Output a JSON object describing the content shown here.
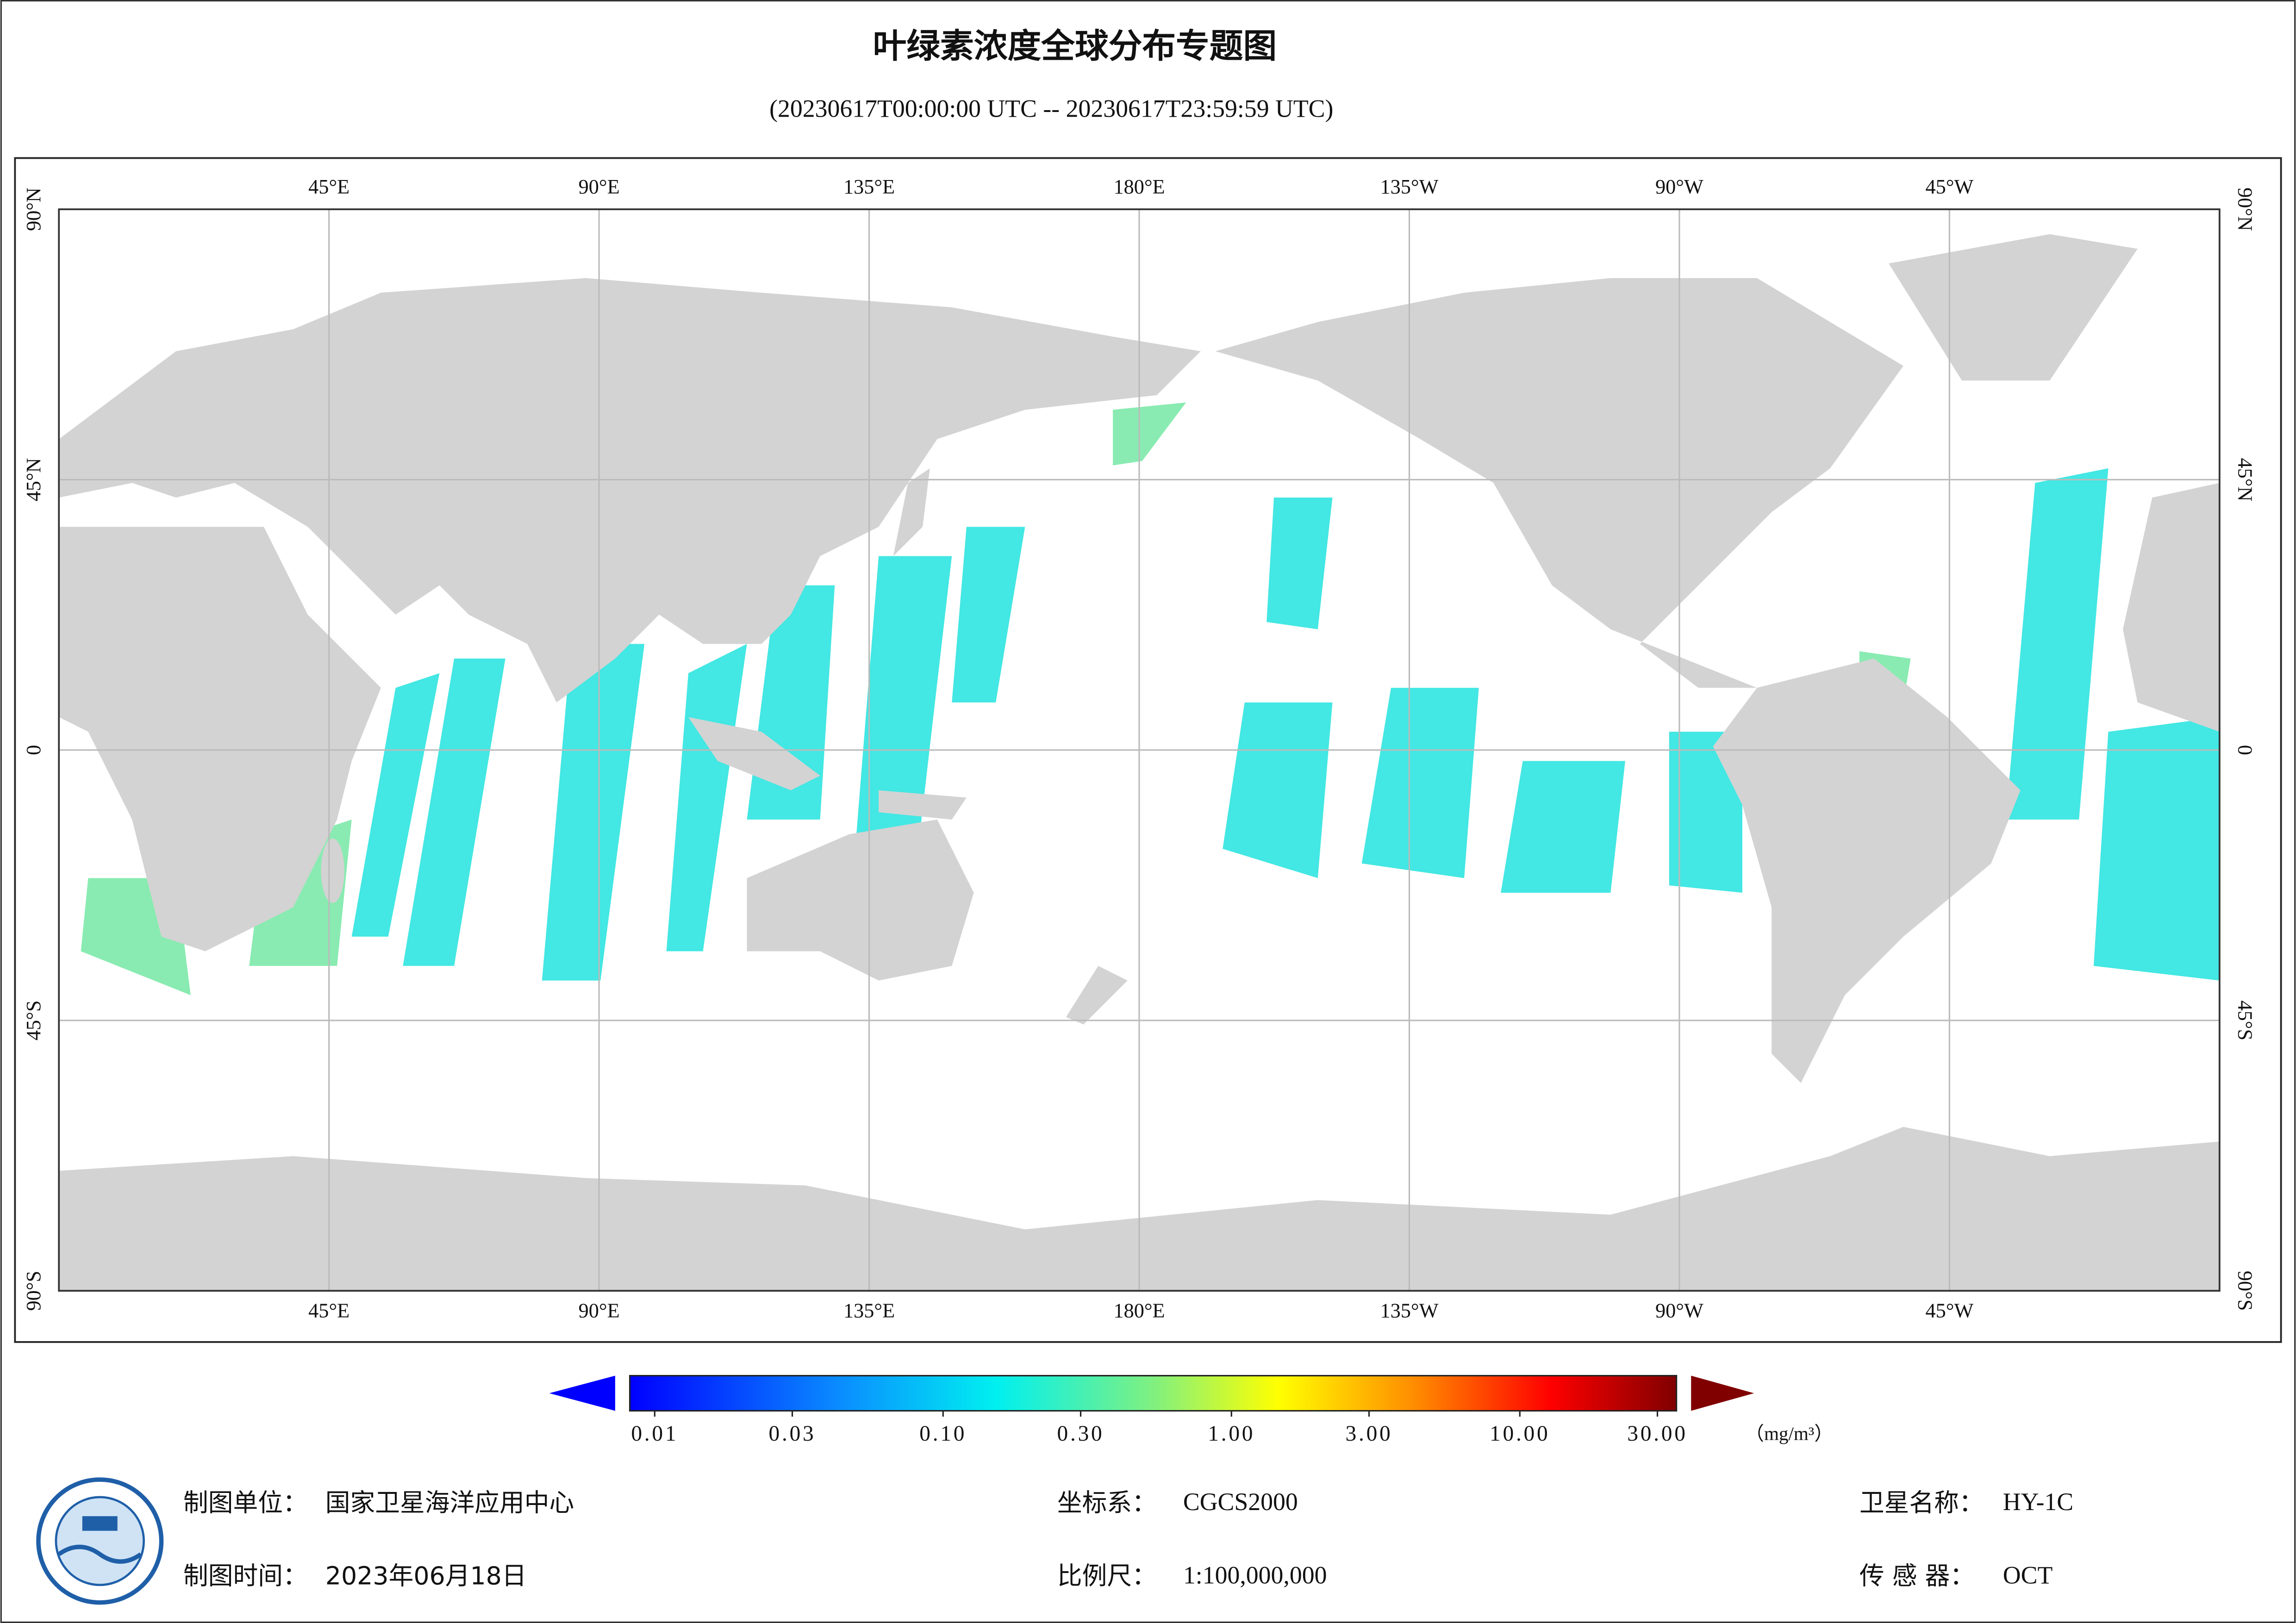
{
  "header": {
    "title": "叶绿素浓度全球分布专题图",
    "subtitle": "(20230617T00:00:00 UTC -- 20230617T23:59:59 UTC)"
  },
  "map": {
    "lon_labels": [
      {
        "value": 45,
        "label": "45°E"
      },
      {
        "value": 90,
        "label": "90°E"
      },
      {
        "value": 135,
        "label": "135°E"
      },
      {
        "value": 180,
        "label": "180°E"
      },
      {
        "value": 225,
        "label": "135°W"
      },
      {
        "value": 270,
        "label": "90°W"
      },
      {
        "value": 315,
        "label": "45°W"
      }
    ],
    "lat_labels": [
      {
        "value": 90,
        "label": "90°N"
      },
      {
        "value": 45,
        "label": "45°N"
      },
      {
        "value": 0,
        "label": "0"
      },
      {
        "value": -45,
        "label": "45°S"
      },
      {
        "value": -90,
        "label": "90°S"
      }
    ]
  },
  "colorbar": {
    "ticks": [
      0.01,
      0.03,
      {
        "value": 0.1,
        "label": "0.10"
      },
      {
        "value": 0.3,
        "label": "0.30"
      },
      {
        "value": 1,
        "label": "1.00"
      },
      {
        "value": 3,
        "label": "3.00"
      },
      {
        "value": 10,
        "label": "10.00"
      },
      {
        "value": 30,
        "label": "30.00"
      }
    ],
    "unit": "（mg/m³）"
  },
  "footer": {
    "unit_label": "制图单位：",
    "unit_value": "国家卫星海洋应用中心",
    "date_label": "制图时间：",
    "date_value": "2023年06月18日",
    "crs_label": "坐标系：",
    "crs_value": "CGCS2000",
    "scale_label": "比例尺：",
    "scale_value": "1:100,000,000",
    "satellite_label": "卫星名称：",
    "satellite_value": "HY-1C",
    "sensor_label": "传 感 器：",
    "sensor_value": "OCT"
  }
}
